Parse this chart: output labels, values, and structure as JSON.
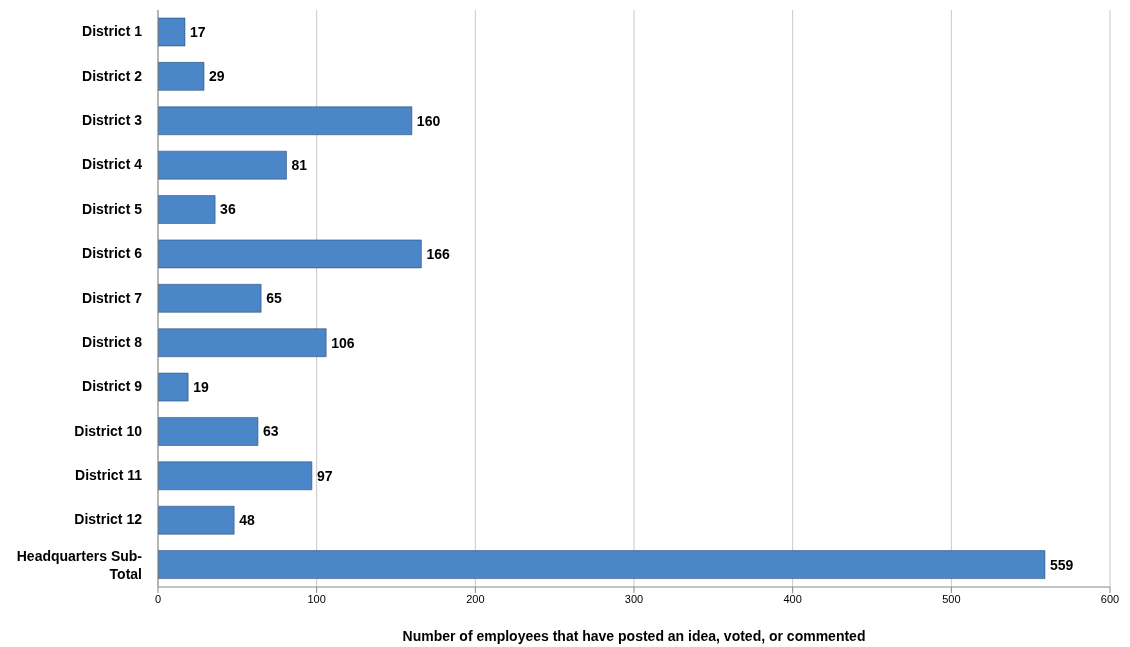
{
  "chart_data": {
    "type": "bar",
    "orientation": "horizontal",
    "categories": [
      "District 1",
      "District 2",
      "District 3",
      "District 4",
      "District 5",
      "District 6",
      "District 7",
      "District 8",
      "District 9",
      "District 10",
      "District 11",
      "District 12",
      "Headquarters Sub-Total"
    ],
    "values": [
      17,
      29,
      160,
      81,
      36,
      166,
      65,
      106,
      19,
      63,
      97,
      48,
      559
    ],
    "color": "#4a86c8",
    "xlabel": "Number of employees that have posted an idea, voted, or commented",
    "xlim": [
      0,
      600
    ],
    "xticks": [
      0,
      100,
      200,
      300,
      400,
      500,
      600
    ],
    "grid": "x",
    "data_labels": true
  }
}
